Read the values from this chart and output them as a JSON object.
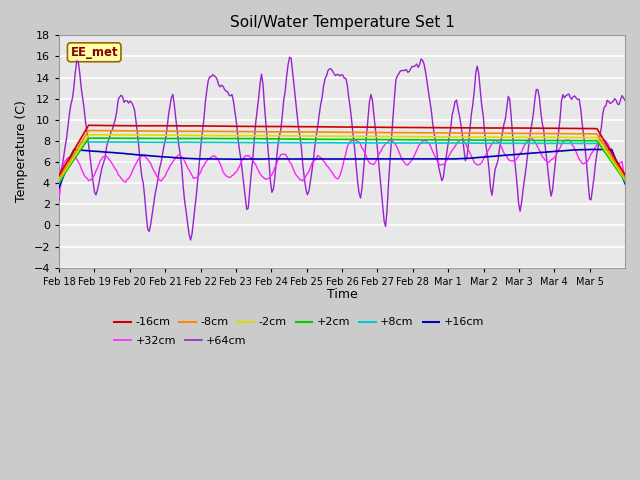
{
  "title": "Soil/Water Temperature Set 1",
  "xlabel": "Time",
  "ylabel": "Temperature (C)",
  "ylim": [
    -4,
    18
  ],
  "yticks": [
    -4,
    -2,
    0,
    2,
    4,
    6,
    8,
    10,
    12,
    14,
    16,
    18
  ],
  "fig_bg": "#cbcbcb",
  "plot_bg": "#e8e8e8",
  "grid_color": "#ffffff",
  "series": {
    "-16cm": {
      "color": "#cc0000",
      "lw": 1.2,
      "zorder": 5
    },
    "-8cm": {
      "color": "#ff8800",
      "lw": 1.2,
      "zorder": 5
    },
    "-2cm": {
      "color": "#dddd00",
      "lw": 1.2,
      "zorder": 5
    },
    "+2cm": {
      "color": "#00cc00",
      "lw": 1.2,
      "zorder": 5
    },
    "+8cm": {
      "color": "#00cccc",
      "lw": 1.2,
      "zorder": 5
    },
    "+16cm": {
      "color": "#0000bb",
      "lw": 1.2,
      "zorder": 5
    },
    "+32cm": {
      "color": "#ff22ff",
      "lw": 1.0,
      "zorder": 4
    },
    "+64cm": {
      "color": "#9922cc",
      "lw": 1.0,
      "zorder": 4
    }
  },
  "watermark": "EE_met",
  "watermark_bg": "#ffffaa",
  "watermark_border": "#996600",
  "xtick_labels": [
    "Feb 18",
    "Feb 19",
    "Feb 20",
    "Feb 21",
    "Feb 22",
    "Feb 23",
    "Feb 24",
    "Feb 25",
    "Feb 26",
    "Feb 27",
    "Feb 28",
    "Mar 1",
    "Mar 2",
    "Mar 3",
    "Mar 4",
    "Mar 5"
  ],
  "legend_row1": [
    "-16cm",
    "-8cm",
    "-2cm",
    "+2cm",
    "+8cm",
    "+16cm"
  ],
  "legend_row2": [
    "+32cm",
    "+64cm"
  ]
}
